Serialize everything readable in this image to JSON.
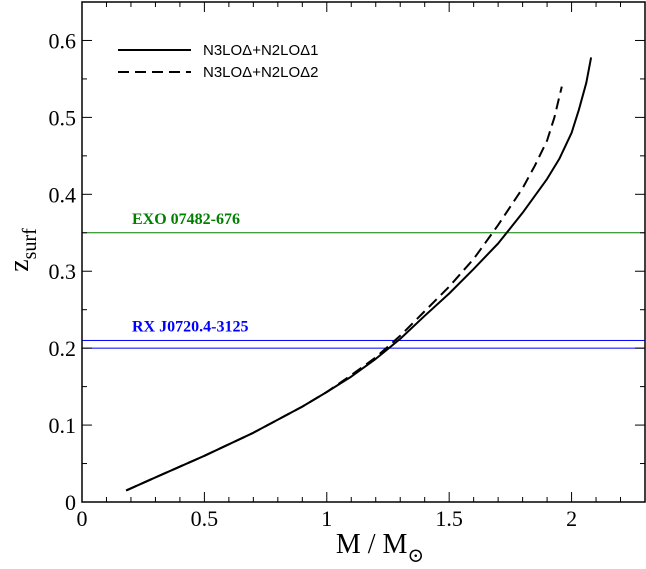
{
  "chart_data": {
    "type": "line",
    "xlabel": "M / M",
    "xlabel_sub": "⊙",
    "ylabel": "z",
    "ylabel_sub": "surf",
    "xlim": [
      0,
      2.3
    ],
    "ylim": [
      0,
      0.65
    ],
    "x_ticks": [
      0,
      0.5,
      1,
      1.5,
      2
    ],
    "x_tick_labels": [
      "0",
      "0.5",
      "1",
      "1.5",
      "2"
    ],
    "y_ticks": [
      0,
      0.1,
      0.2,
      0.3,
      0.4,
      0.5,
      0.6
    ],
    "y_tick_labels": [
      "0",
      "0.1",
      "0.2",
      "0.3",
      "0.4",
      "0.5",
      "0.6"
    ],
    "grid": false,
    "legend_position": "top-left",
    "series": [
      {
        "name": "N3LOΔ+N2LOΔ1",
        "style": "solid",
        "color": "#000000",
        "x": [
          0.18,
          0.3,
          0.5,
          0.7,
          0.9,
          1.0,
          1.1,
          1.2,
          1.3,
          1.4,
          1.5,
          1.6,
          1.7,
          1.8,
          1.9,
          1.95,
          2.0,
          2.03,
          2.06,
          2.08
        ],
        "y": [
          0.015,
          0.032,
          0.06,
          0.09,
          0.124,
          0.143,
          0.163,
          0.186,
          0.212,
          0.242,
          0.271,
          0.303,
          0.336,
          0.376,
          0.42,
          0.446,
          0.48,
          0.51,
          0.545,
          0.578
        ]
      },
      {
        "name": "N3LOΔ+N2LOΔ2",
        "style": "dashed",
        "color": "#000000",
        "x": [
          0.18,
          0.3,
          0.5,
          0.7,
          0.9,
          1.0,
          1.1,
          1.2,
          1.3,
          1.4,
          1.5,
          1.6,
          1.7,
          1.8,
          1.85,
          1.9,
          1.93,
          1.96
        ],
        "y": [
          0.015,
          0.032,
          0.06,
          0.09,
          0.124,
          0.143,
          0.165,
          0.188,
          0.216,
          0.248,
          0.28,
          0.316,
          0.36,
          0.408,
          0.437,
          0.47,
          0.5,
          0.54
        ]
      }
    ],
    "annotations": [
      {
        "label": "EXO 07482-676",
        "y": 0.35,
        "color": "#008000",
        "type": "hline"
      },
      {
        "label": "RX J0720.4-3125",
        "y_range": [
          0.2,
          0.21
        ],
        "color": "#0000ff",
        "type": "hband"
      }
    ]
  }
}
